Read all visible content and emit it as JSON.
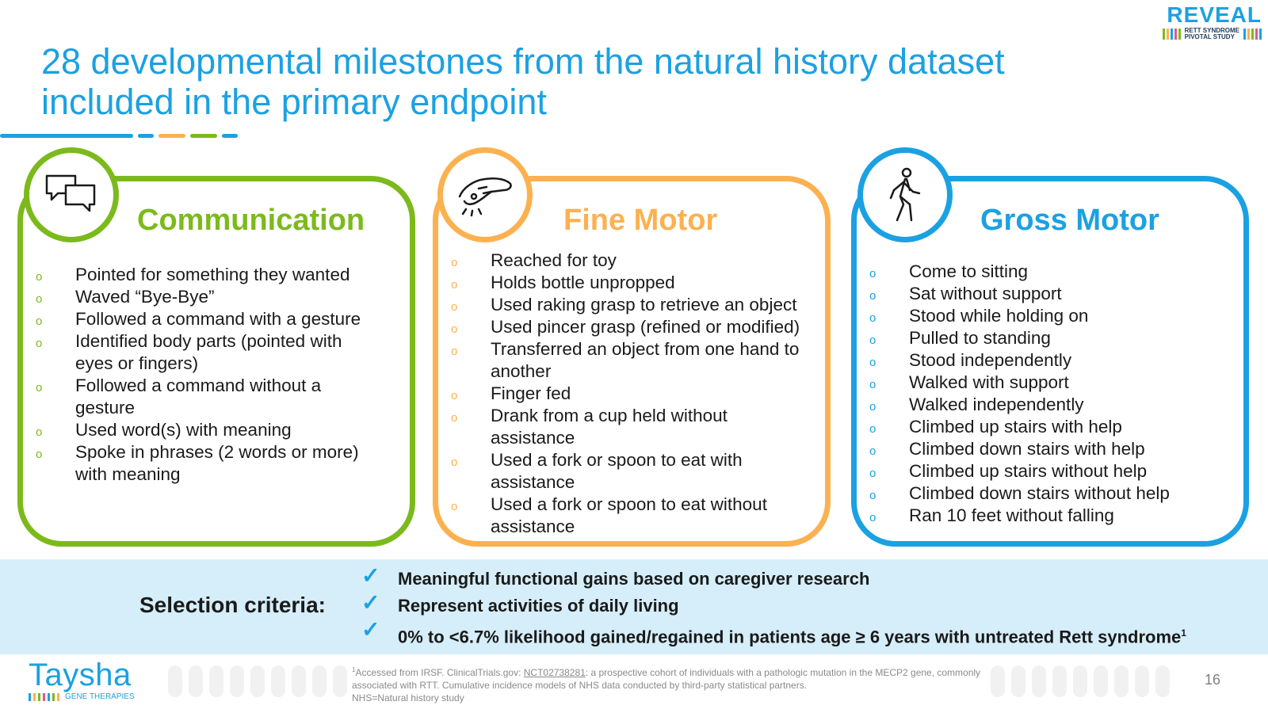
{
  "title_lines": [
    "28 developmental milestones from the natural history dataset",
    "included in the primary endpoint"
  ],
  "logo_reveal": {
    "word": "REVEAL",
    "sub_line1": "RETT SYNDROME",
    "sub_line2": "PIVOTAL STUDY"
  },
  "colors": {
    "green": "#7cba1c",
    "orange": "#fbb150",
    "blue": "#1ba1e2"
  },
  "cards": {
    "communication": {
      "title": "Communication",
      "icon": "chat-bubbles-icon",
      "bullet": "o",
      "items": [
        [
          "Pointed for something they wanted"
        ],
        [
          "Waved “Bye-Bye”"
        ],
        [
          "Followed a command with a gesture"
        ],
        [
          "Identified body parts (pointed with",
          "eyes or fingers)"
        ],
        [
          "Followed a command without a",
          "gesture"
        ],
        [
          "Used word(s) with meaning"
        ],
        [
          "Spoke in phrases (2 words or more)",
          "with meaning"
        ]
      ]
    },
    "fine_motor": {
      "title": "Fine Motor",
      "icon": "hand-grasp-icon",
      "bullet": "o",
      "items": [
        [
          "Reached for toy"
        ],
        [
          "Holds bottle unpropped"
        ],
        [
          "Used raking grasp to retrieve an object"
        ],
        [
          "Used pincer grasp (refined or modified)"
        ],
        [
          "Transferred an object from one hand to",
          "another"
        ],
        [
          "Finger fed"
        ],
        [
          "Drank from a cup held without",
          "assistance"
        ],
        [
          "Used a fork or spoon to eat with",
          "assistance"
        ],
        [
          "Used a fork or spoon to eat without",
          "assistance"
        ]
      ]
    },
    "gross_motor": {
      "title": "Gross Motor",
      "icon": "walking-person-icon",
      "bullet": "o",
      "items": [
        [
          "Come to sitting"
        ],
        [
          "Sat without support"
        ],
        [
          "Stood while holding on"
        ],
        [
          "Pulled to standing"
        ],
        [
          "Stood independently"
        ],
        [
          "Walked with support"
        ],
        [
          "Walked independently"
        ],
        [
          "Climbed up stairs with help"
        ],
        [
          "Climbed down stairs with help"
        ],
        [
          "Climbed up stairs without help"
        ],
        [
          "Climbed down stairs without help"
        ],
        [
          "Ran 10 feet without falling"
        ]
      ]
    }
  },
  "criteria": {
    "label": "Selection criteria:",
    "check_symbol": "✓",
    "items": [
      "Meaningful functional gains based on caregiver research",
      "Represent activities of daily living",
      "0% to <6.7% likelihood gained/regained in patients age ≥ 6 years with untreated Rett syndrome"
    ],
    "last_item_sup": "1"
  },
  "footer": {
    "logo_word": "Taysha",
    "logo_sub": "GENE THERAPIES",
    "footnote_sup": "1",
    "footnote_pre": "Accessed from IRSF. ClinicalTrials.gov: ",
    "footnote_link": "NCT02738281",
    "footnote_post": ": a prospective cohort of individuals with a pathologic mutation in the MECP2 gene, commonly associated with RTT. Cumulative incidence models of NHS data conducted by third-party statistical partners.",
    "footnote_line2": "NHS=Natural history study",
    "page_number": "16"
  }
}
